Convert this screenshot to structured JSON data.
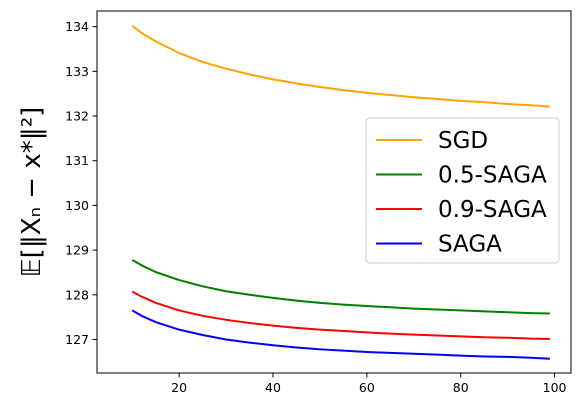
{
  "chart_data": {
    "type": "line",
    "title": "",
    "xlabel": "",
    "ylabel": "𝔼[‖Xₙ − x*‖²]",
    "xlim": [
      2.5,
      103.5
    ],
    "ylim": [
      126.25,
      134.35
    ],
    "xticks": [
      20,
      40,
      60,
      80,
      100
    ],
    "yticks": [
      127,
      128,
      129,
      130,
      131,
      132,
      133,
      134
    ],
    "grid": false,
    "legend_position": "center-right",
    "x": [
      10,
      12,
      15,
      20,
      25,
      30,
      35,
      40,
      45,
      50,
      55,
      60,
      65,
      70,
      75,
      80,
      85,
      90,
      95,
      99
    ],
    "series": [
      {
        "name": "SGD",
        "color": "#ffa500",
        "values": [
          134.02,
          133.86,
          133.67,
          133.41,
          133.21,
          133.06,
          132.93,
          132.82,
          132.73,
          132.65,
          132.58,
          132.52,
          132.47,
          132.42,
          132.38,
          132.34,
          132.31,
          132.27,
          132.24,
          132.21
        ]
      },
      {
        "name": "0.5-SAGA",
        "color": "#008000",
        "values": [
          128.78,
          128.66,
          128.51,
          128.33,
          128.19,
          128.08,
          128.0,
          127.93,
          127.87,
          127.82,
          127.78,
          127.75,
          127.72,
          127.69,
          127.67,
          127.65,
          127.63,
          127.61,
          127.59,
          127.58
        ]
      },
      {
        "name": "0.9-SAGA",
        "color": "#ff0000",
        "values": [
          128.07,
          127.96,
          127.82,
          127.65,
          127.53,
          127.44,
          127.37,
          127.31,
          127.26,
          127.22,
          127.19,
          127.16,
          127.13,
          127.11,
          127.09,
          127.07,
          127.05,
          127.04,
          127.02,
          127.01
        ]
      },
      {
        "name": "SAGA",
        "color": "#0000ff",
        "values": [
          127.65,
          127.53,
          127.39,
          127.22,
          127.1,
          127.0,
          126.93,
          126.87,
          126.82,
          126.78,
          126.75,
          126.72,
          126.7,
          126.68,
          126.66,
          126.64,
          126.62,
          126.61,
          126.59,
          126.57
        ]
      }
    ]
  }
}
